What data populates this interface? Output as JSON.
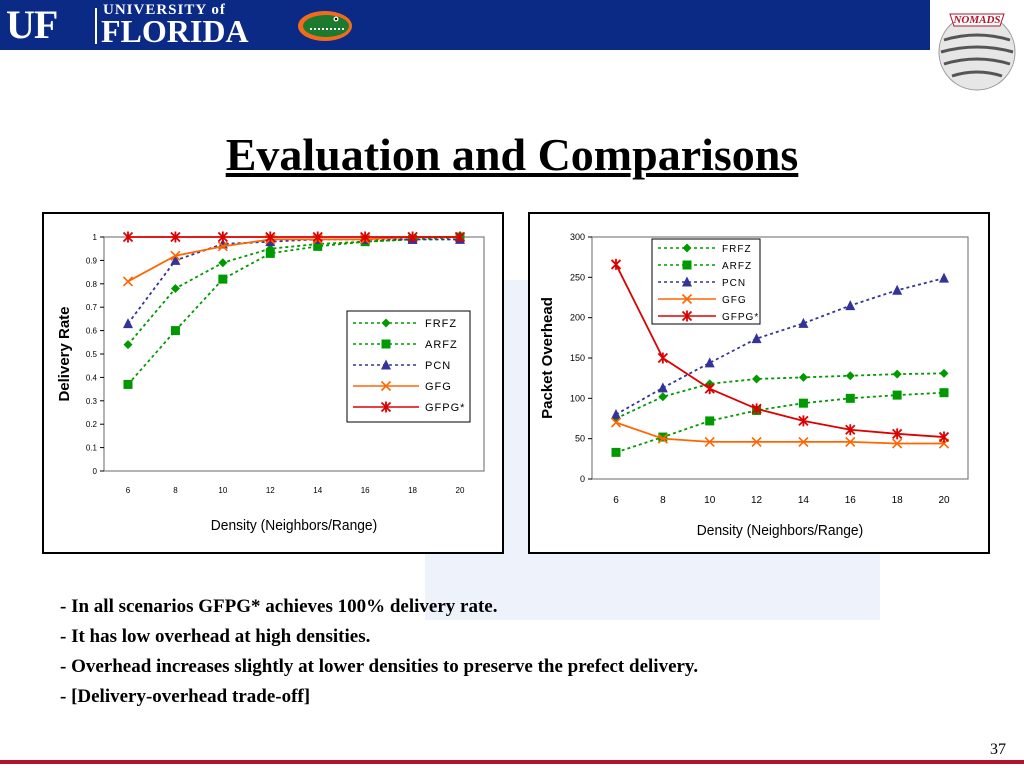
{
  "header": {
    "logo_uf": "UF",
    "logo_university": "UNIVERSITY of",
    "logo_florida": "FLORIDA",
    "gator_icon": "gator-icon",
    "nomads_logo": "NOMADS",
    "brand_color": "#0a2a86"
  },
  "slide": {
    "title": "Evaluation and Comparisons",
    "bullets": [
      "- In all scenarios GFPG* achieves 100% delivery rate.",
      "- It has low overhead at high densities.",
      "- Overhead increases slightly at lower densities to preserve the prefect delivery.",
      "- [Delivery-overhead trade-off]"
    ],
    "page_number": "37"
  },
  "chart_data": [
    {
      "type": "line",
      "xlabel": "Density (Neighbors/Range)",
      "ylabel": "Delivery Rate",
      "x": [
        6,
        8,
        10,
        12,
        14,
        16,
        18,
        20
      ],
      "xticks": [
        "6",
        "8",
        "10",
        "12",
        "14",
        "16",
        "18",
        "20"
      ],
      "yticks": [
        "0",
        "0.1",
        "0.2",
        "0.3",
        "0.4",
        "0.5",
        "0.6",
        "0.7",
        "0.8",
        "0.9",
        "1"
      ],
      "ylim": [
        0,
        1
      ],
      "grid": false,
      "legend": "center-right",
      "series": [
        {
          "name": "FRFZ",
          "values": [
            0.54,
            0.78,
            0.89,
            0.95,
            0.97,
            0.98,
            0.99,
            0.99
          ],
          "color": "#009900",
          "dash": "dotted",
          "marker": "diamond"
        },
        {
          "name": "ARFZ",
          "values": [
            0.37,
            0.6,
            0.82,
            0.93,
            0.96,
            0.98,
            0.99,
            1.0
          ],
          "color": "#009900",
          "dash": "dotted",
          "marker": "square"
        },
        {
          "name": "PCN",
          "values": [
            0.63,
            0.9,
            0.97,
            0.98,
            0.99,
            0.99,
            0.99,
            0.99
          ],
          "color": "#333399",
          "dash": "dotted",
          "marker": "triangle"
        },
        {
          "name": "GFG",
          "values": [
            0.81,
            0.92,
            0.96,
            0.99,
            0.99,
            0.99,
            1.0,
            1.0
          ],
          "color": "#ff6600",
          "dash": "solid",
          "marker": "x"
        },
        {
          "name": "GFPG*",
          "values": [
            1.0,
            1.0,
            1.0,
            1.0,
            1.0,
            1.0,
            1.0,
            1.0
          ],
          "color": "#dd0000",
          "dash": "solid",
          "marker": "star"
        }
      ]
    },
    {
      "type": "line",
      "xlabel": "Density (Neighbors/Range)",
      "ylabel": "Packet Overhead",
      "x": [
        6,
        8,
        10,
        12,
        14,
        16,
        18,
        20
      ],
      "xticks": [
        "6",
        "8",
        "10",
        "12",
        "14",
        "16",
        "18",
        "20"
      ],
      "yticks": [
        "0",
        "50",
        "100",
        "150",
        "200",
        "250",
        "300"
      ],
      "ylim": [
        0,
        300
      ],
      "grid": false,
      "legend": "top-left",
      "series": [
        {
          "name": "FRFZ",
          "values": [
            75,
            102,
            118,
            124,
            126,
            128,
            130,
            131
          ],
          "color": "#009900",
          "dash": "dotted",
          "marker": "diamond"
        },
        {
          "name": "ARFZ",
          "values": [
            33,
            52,
            72,
            85,
            94,
            100,
            104,
            107
          ],
          "color": "#009900",
          "dash": "dotted",
          "marker": "square"
        },
        {
          "name": "PCN",
          "values": [
            80,
            113,
            144,
            174,
            193,
            215,
            234,
            249
          ],
          "color": "#333399",
          "dash": "dotted",
          "marker": "triangle"
        },
        {
          "name": "GFG",
          "values": [
            70,
            50,
            46,
            46,
            46,
            46,
            44,
            44
          ],
          "color": "#ff6600",
          "dash": "solid",
          "marker": "x"
        },
        {
          "name": "GFPG*",
          "values": [
            266,
            150,
            112,
            87,
            72,
            61,
            56,
            52
          ],
          "color": "#dd0000",
          "dash": "solid",
          "marker": "star"
        }
      ]
    }
  ]
}
